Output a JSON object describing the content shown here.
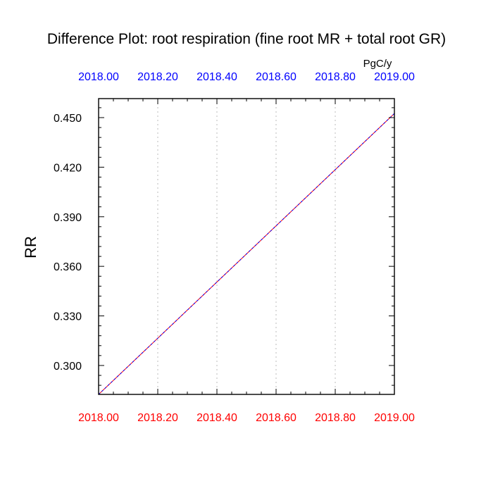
{
  "title": "Difference Plot: root respiration (fine root MR + total root GR)",
  "units": "PgC/y",
  "chart_data": {
    "type": "line",
    "ylabel": "RR",
    "xlim": [
      2018.0,
      2019.0
    ],
    "ylim": [
      0.2825,
      0.4615
    ],
    "x_ticks": [
      "2018.00",
      "2018.20",
      "2018.40",
      "2018.60",
      "2018.80",
      "2019.00"
    ],
    "x_tick_values": [
      2018.0,
      2018.2,
      2018.4,
      2018.6,
      2018.8,
      2019.0
    ],
    "y_ticks": [
      "0.300",
      "0.330",
      "0.360",
      "0.390",
      "0.420",
      "0.450"
    ],
    "y_tick_values": [
      0.3,
      0.33,
      0.36,
      0.39,
      0.42,
      0.45
    ],
    "grid": "vertical dotted",
    "series": [
      {
        "x": [
          2018.0,
          2019.0
        ],
        "y": [
          0.2825,
          0.4525
        ],
        "color": "#ff0000"
      },
      {
        "x": [
          2018.0,
          2019.0
        ],
        "y": [
          0.2825,
          0.4525
        ],
        "color": "#0000ff"
      }
    ],
    "colors": {
      "top_axis_labels": "#0000ff",
      "bottom_axis_labels": "#ff0000",
      "grid": "#bbbbbb",
      "frame": "#000000"
    }
  }
}
